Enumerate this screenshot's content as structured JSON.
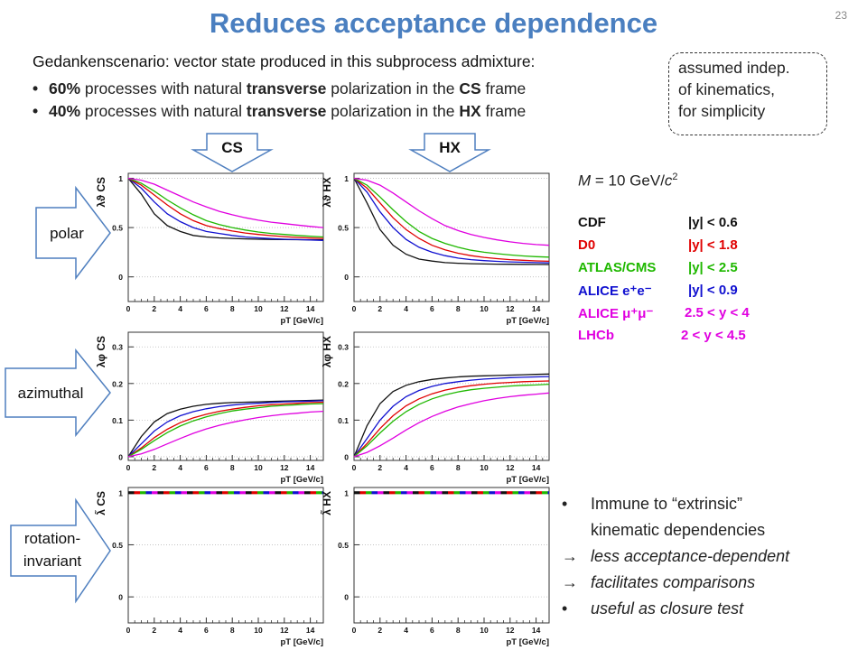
{
  "slide": {
    "title": "Reduces acceptance dependence",
    "number": "23",
    "intro": "Gedankenscenario: vector state produced in this subprocess admixture:",
    "bullets": [
      {
        "marker": "•",
        "pct": "60%",
        "text_a": " processes with natural ",
        "bold_b": "transverse",
        "text_c": " polarization in the ",
        "frame": "CS",
        "text_d": " frame"
      },
      {
        "marker": "•",
        "pct": "40%",
        "text_a": " processes with natural ",
        "bold_b": "transverse",
        "text_c": " polarization in the ",
        "frame": "HX",
        "text_d": " frame"
      }
    ],
    "note_lines": [
      "assumed indep.",
      "of kinematics,",
      "for simplicity"
    ],
    "frame_tags": {
      "cs": "CS",
      "hx": "HX"
    },
    "row_labels": {
      "polar": "polar",
      "azimuthal": "azimuthal",
      "rotation_1": "rotation-",
      "rotation_2": "invariant"
    },
    "mass": {
      "prefix": "M",
      "eq": " = 10 GeV/",
      "c": "c",
      "sup": "2"
    },
    "legend": [
      {
        "name": "CDF",
        "range": "|y| < 0.6",
        "color": "#111111"
      },
      {
        "name": "D0",
        "range": "|y| < 1.8",
        "color": "#e00000"
      },
      {
        "name": "ATLAS/CMS",
        "range": "|y| < 2.5",
        "color": "#1fb800"
      },
      {
        "name": "ALICE e⁺e⁻",
        "range": "|y| < 0.9",
        "color": "#1010d0"
      },
      {
        "name": "ALICE μ⁺μ⁻",
        "range": "2.5 < y < 4",
        "color": "#e000e0"
      },
      {
        "name": "LHCb",
        "range": "2 < y < 4.5",
        "color": "#e000e0"
      }
    ],
    "facts": [
      {
        "marker": "•",
        "text": "Immune to “extrinsic”",
        "style": "normal"
      },
      {
        "marker": "",
        "text": "kinematic dependencies",
        "style": "normal"
      },
      {
        "marker": "→",
        "text": "less acceptance-dependent",
        "style": "italic"
      },
      {
        "marker": "→",
        "text": "facilitates comparisons",
        "style": "italic"
      },
      {
        "marker": "•",
        "text": "useful as closure test",
        "style": "italic"
      }
    ]
  },
  "chart_data": [
    {
      "type": "line",
      "panel": "polar-cs",
      "ylabel": "λϑ CS",
      "xlabel": "pT [GeV/c]",
      "xlim": [
        0,
        15
      ],
      "ylim": [
        -0.25,
        1.05
      ],
      "xticks": [
        0,
        2,
        4,
        6,
        8,
        10,
        12,
        14
      ],
      "yticks": [
        0,
        0.5,
        1
      ],
      "x": [
        0,
        1,
        2,
        3,
        4,
        5,
        6,
        7,
        8,
        9,
        10,
        11,
        12,
        13,
        14,
        15
      ],
      "series": [
        {
          "color": "#111111",
          "values": [
            1.0,
            0.84,
            0.64,
            0.52,
            0.46,
            0.42,
            0.405,
            0.395,
            0.39,
            0.385,
            0.382,
            0.38,
            0.378,
            0.377,
            0.376,
            0.375
          ]
        },
        {
          "color": "#1010d0",
          "values": [
            1.0,
            0.9,
            0.76,
            0.64,
            0.56,
            0.5,
            0.46,
            0.44,
            0.42,
            0.405,
            0.395,
            0.388,
            0.382,
            0.378,
            0.374,
            0.37
          ]
        },
        {
          "color": "#e00000",
          "values": [
            1.0,
            0.93,
            0.83,
            0.73,
            0.64,
            0.57,
            0.52,
            0.49,
            0.465,
            0.445,
            0.43,
            0.418,
            0.408,
            0.4,
            0.394,
            0.39
          ]
        },
        {
          "color": "#1fb800",
          "values": [
            1.0,
            0.95,
            0.87,
            0.78,
            0.7,
            0.63,
            0.57,
            0.53,
            0.5,
            0.475,
            0.455,
            0.44,
            0.43,
            0.42,
            0.412,
            0.405
          ]
        },
        {
          "color": "#e000e0",
          "values": [
            1.0,
            0.98,
            0.94,
            0.88,
            0.82,
            0.76,
            0.71,
            0.665,
            0.63,
            0.6,
            0.575,
            0.555,
            0.54,
            0.525,
            0.512,
            0.5
          ]
        }
      ]
    },
    {
      "type": "line",
      "panel": "polar-hx",
      "ylabel": "λϑ HX",
      "xlabel": "pT [GeV/c]",
      "xlim": [
        0,
        15
      ],
      "ylim": [
        -0.25,
        1.05
      ],
      "xticks": [
        0,
        2,
        4,
        6,
        8,
        10,
        12,
        14
      ],
      "yticks": [
        0,
        0.5,
        1
      ],
      "x": [
        0,
        1,
        2,
        3,
        4,
        5,
        6,
        7,
        8,
        9,
        10,
        11,
        12,
        13,
        14,
        15
      ],
      "series": [
        {
          "color": "#111111",
          "values": [
            1.0,
            0.75,
            0.48,
            0.32,
            0.23,
            0.18,
            0.16,
            0.145,
            0.138,
            0.134,
            0.131,
            0.129,
            0.128,
            0.127,
            0.126,
            0.125
          ]
        },
        {
          "color": "#1010d0",
          "values": [
            1.0,
            0.86,
            0.66,
            0.5,
            0.38,
            0.3,
            0.25,
            0.215,
            0.19,
            0.175,
            0.165,
            0.157,
            0.152,
            0.148,
            0.145,
            0.142
          ]
        },
        {
          "color": "#e00000",
          "values": [
            1.0,
            0.9,
            0.75,
            0.6,
            0.48,
            0.39,
            0.32,
            0.275,
            0.24,
            0.215,
            0.198,
            0.185,
            0.175,
            0.168,
            0.162,
            0.158
          ]
        },
        {
          "color": "#1fb800",
          "values": [
            1.0,
            0.93,
            0.81,
            0.68,
            0.56,
            0.46,
            0.39,
            0.34,
            0.3,
            0.27,
            0.25,
            0.235,
            0.222,
            0.212,
            0.205,
            0.2
          ]
        },
        {
          "color": "#e000e0",
          "values": [
            1.0,
            0.98,
            0.93,
            0.85,
            0.76,
            0.67,
            0.59,
            0.52,
            0.47,
            0.43,
            0.4,
            0.375,
            0.355,
            0.34,
            0.328,
            0.32
          ]
        }
      ]
    },
    {
      "type": "line",
      "panel": "azimuthal-cs",
      "ylabel": "λφ CS",
      "xlabel": "pT [GeV/c]",
      "xlim": [
        0,
        15
      ],
      "ylim": [
        -0.01,
        0.34
      ],
      "xticks": [
        0,
        2,
        4,
        6,
        8,
        10,
        12,
        14
      ],
      "yticks": [
        0,
        0.1,
        0.2,
        0.3
      ],
      "x": [
        0,
        1,
        2,
        3,
        4,
        5,
        6,
        7,
        8,
        9,
        10,
        11,
        12,
        13,
        14,
        15
      ],
      "series": [
        {
          "color": "#111111",
          "values": [
            0.0,
            0.055,
            0.095,
            0.118,
            0.13,
            0.138,
            0.143,
            0.146,
            0.148,
            0.149,
            0.15,
            0.151,
            0.152,
            0.153,
            0.154,
            0.155
          ]
        },
        {
          "color": "#1010d0",
          "values": [
            0.0,
            0.035,
            0.07,
            0.095,
            0.112,
            0.123,
            0.131,
            0.137,
            0.141,
            0.144,
            0.146,
            0.148,
            0.15,
            0.151,
            0.152,
            0.153
          ]
        },
        {
          "color": "#e00000",
          "values": [
            0.0,
            0.024,
            0.052,
            0.075,
            0.093,
            0.106,
            0.116,
            0.124,
            0.13,
            0.135,
            0.139,
            0.142,
            0.144,
            0.146,
            0.148,
            0.149
          ]
        },
        {
          "color": "#1fb800",
          "values": [
            0.0,
            0.02,
            0.044,
            0.066,
            0.084,
            0.098,
            0.109,
            0.118,
            0.125,
            0.13,
            0.134,
            0.138,
            0.14,
            0.142,
            0.144,
            0.145
          ]
        },
        {
          "color": "#e000e0",
          "values": [
            0.0,
            0.008,
            0.02,
            0.035,
            0.05,
            0.064,
            0.076,
            0.086,
            0.094,
            0.101,
            0.107,
            0.112,
            0.116,
            0.119,
            0.122,
            0.124
          ]
        }
      ]
    },
    {
      "type": "line",
      "panel": "azimuthal-hx",
      "ylabel": "λφ HX",
      "xlabel": "pT [GeV/c]",
      "xlim": [
        0,
        15
      ],
      "ylim": [
        -0.01,
        0.34
      ],
      "xticks": [
        0,
        2,
        4,
        6,
        8,
        10,
        12,
        14
      ],
      "yticks": [
        0,
        0.1,
        0.2,
        0.3
      ],
      "x": [
        0,
        1,
        2,
        3,
        4,
        5,
        6,
        7,
        8,
        9,
        10,
        11,
        12,
        13,
        14,
        15
      ],
      "series": [
        {
          "color": "#111111",
          "values": [
            0.0,
            0.085,
            0.145,
            0.178,
            0.195,
            0.205,
            0.211,
            0.215,
            0.218,
            0.22,
            0.221,
            0.222,
            0.223,
            0.224,
            0.225,
            0.226
          ]
        },
        {
          "color": "#1010d0",
          "values": [
            0.0,
            0.05,
            0.1,
            0.138,
            0.164,
            0.181,
            0.192,
            0.2,
            0.205,
            0.209,
            0.212,
            0.214,
            0.216,
            0.217,
            0.218,
            0.219
          ]
        },
        {
          "color": "#e00000",
          "values": [
            0.0,
            0.036,
            0.077,
            0.112,
            0.139,
            0.158,
            0.172,
            0.182,
            0.189,
            0.194,
            0.198,
            0.201,
            0.203,
            0.205,
            0.206,
            0.207
          ]
        },
        {
          "color": "#1fb800",
          "values": [
            0.0,
            0.03,
            0.065,
            0.097,
            0.123,
            0.143,
            0.158,
            0.169,
            0.177,
            0.183,
            0.187,
            0.19,
            0.193,
            0.195,
            0.196,
            0.198
          ]
        },
        {
          "color": "#e000e0",
          "values": [
            0.0,
            0.012,
            0.03,
            0.051,
            0.073,
            0.093,
            0.11,
            0.124,
            0.136,
            0.145,
            0.153,
            0.159,
            0.164,
            0.168,
            0.171,
            0.174
          ]
        }
      ]
    },
    {
      "type": "line",
      "panel": "invariant-cs",
      "ylabel": "λ̃ CS",
      "xlabel": "pT [GeV/c]",
      "xlim": [
        0,
        15
      ],
      "ylim": [
        -0.25,
        1.05
      ],
      "xticks": [
        0,
        2,
        4,
        6,
        8,
        10,
        12,
        14
      ],
      "yticks": [
        0,
        0.5,
        1
      ],
      "dashed_constant": 1.0,
      "dash_colors": [
        "#111111",
        "#e00000",
        "#1fb800",
        "#1010d0",
        "#e000e0"
      ]
    },
    {
      "type": "line",
      "panel": "invariant-hx",
      "ylabel": "λ̃ HX",
      "xlabel": "pT [GeV/c]",
      "xlim": [
        0,
        15
      ],
      "ylim": [
        -0.25,
        1.05
      ],
      "xticks": [
        0,
        2,
        4,
        6,
        8,
        10,
        12,
        14
      ],
      "yticks": [
        0,
        0.5,
        1
      ],
      "dashed_constant": 1.0,
      "dash_colors": [
        "#111111",
        "#e00000",
        "#1fb800",
        "#1010d0",
        "#e000e0"
      ]
    }
  ]
}
